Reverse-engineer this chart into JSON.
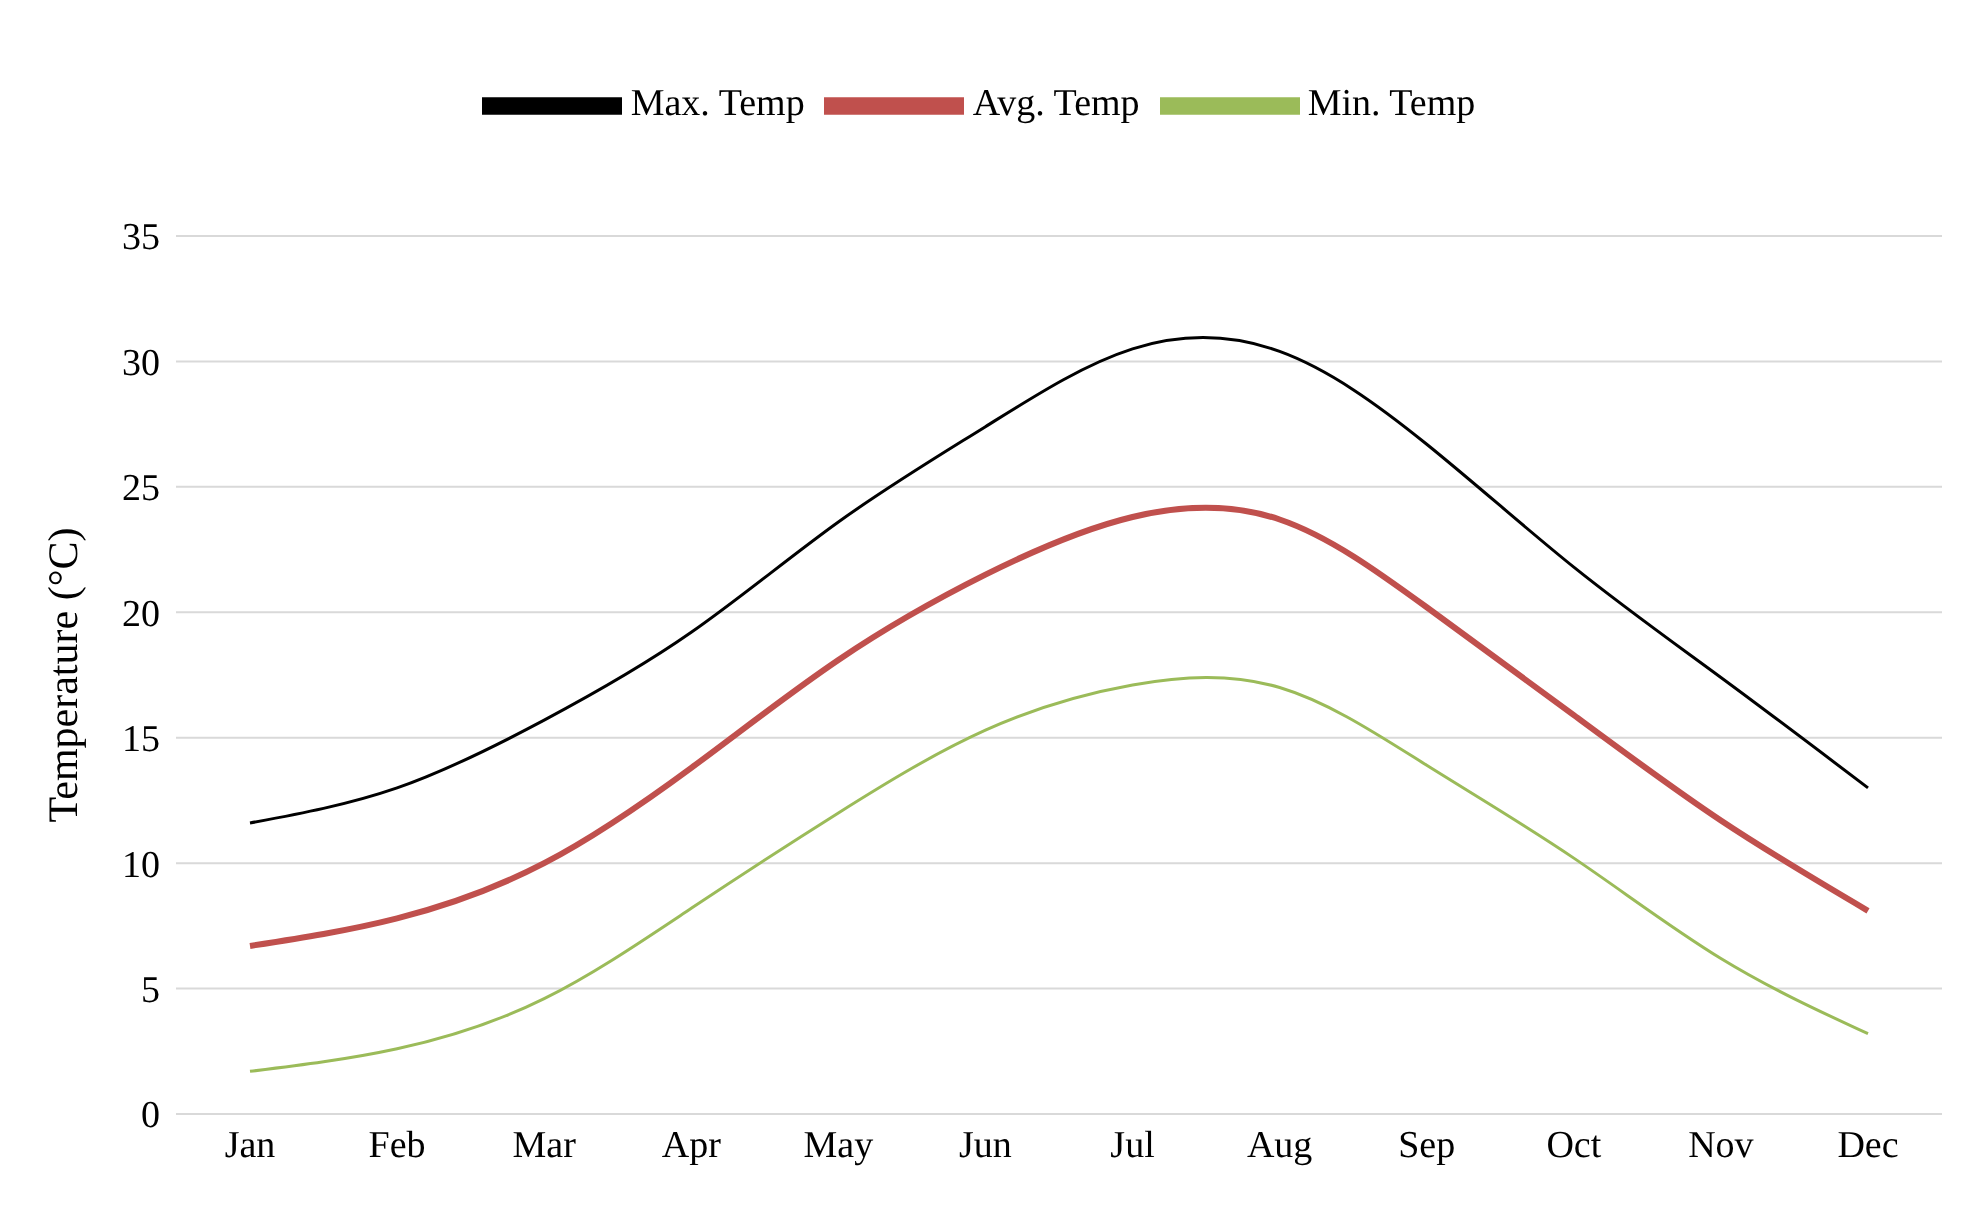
{
  "chart_data": {
    "type": "line",
    "ylabel": "Temperature (°C)",
    "categories": [
      "Jan",
      "Feb",
      "Mar",
      "Apr",
      "May",
      "Jun",
      "Jul",
      "Aug",
      "Sep",
      "Oct",
      "Nov",
      "Dec"
    ],
    "series": [
      {
        "name": "Max. Temp",
        "color": "#000000",
        "values": [
          11.6,
          13.0,
          15.7,
          19.2,
          23.6,
          27.4,
          30.5,
          30.4,
          26.7,
          21.8,
          17.4,
          13.0
        ]
      },
      {
        "name": "Avg. Temp",
        "color": "#c0504d",
        "values": [
          6.7,
          7.8,
          10.0,
          13.8,
          18.1,
          21.5,
          23.8,
          23.7,
          20.2,
          15.9,
          11.7,
          8.1
        ]
      },
      {
        "name": "Min. Temp",
        "color": "#9bbb59",
        "values": [
          1.7,
          2.6,
          4.6,
          8.2,
          12.0,
          15.3,
          17.1,
          17.0,
          13.9,
          10.2,
          6.2,
          3.2
        ]
      }
    ],
    "ylim": [
      0,
      35
    ],
    "yticks": [
      0,
      5,
      10,
      15,
      20,
      25,
      30,
      35
    ],
    "grid": "y",
    "legend": "top"
  }
}
